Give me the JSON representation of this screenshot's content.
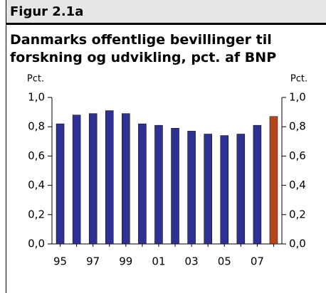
{
  "chart_data": {
    "type": "bar",
    "header": "Figur 2.1a",
    "title": "Danmarks offentlige bevillinger til forskning og udvikling, pct. af BNP",
    "ylabel": "Pct.",
    "y2label": "Pct.",
    "categories": [
      "95",
      null,
      "97",
      null,
      "99",
      null,
      "01",
      null,
      "03",
      null,
      "05",
      null,
      "07",
      null
    ],
    "values": [
      0.82,
      0.88,
      0.89,
      0.91,
      0.89,
      0.82,
      0.81,
      0.79,
      0.77,
      0.75,
      0.74,
      0.75,
      0.81,
      0.87
    ],
    "colors": [
      "#2e3192",
      "#2e3192",
      "#2e3192",
      "#2e3192",
      "#2e3192",
      "#2e3192",
      "#2e3192",
      "#2e3192",
      "#2e3192",
      "#2e3192",
      "#2e3192",
      "#2e3192",
      "#2e3192",
      "#b5461b"
    ],
    "ylim": [
      0,
      1
    ],
    "yticks": [
      {
        "value": 0,
        "label": "0,0"
      },
      {
        "value": 0.2,
        "label": "0,2"
      },
      {
        "value": 0.4,
        "label": "0,4"
      },
      {
        "value": 0.6,
        "label": "0,6"
      },
      {
        "value": 0.8,
        "label": "0,8"
      },
      {
        "value": 1,
        "label": "1,0"
      }
    ],
    "y2lim": [
      0,
      1
    ],
    "y2ticks": [
      {
        "value": 0,
        "label": "0,0"
      },
      {
        "value": 0.2,
        "label": "0,2"
      },
      {
        "value": 0.4,
        "label": "0,4"
      },
      {
        "value": 0.6,
        "label": "0,6"
      },
      {
        "value": 0.8,
        "label": "0,8"
      },
      {
        "value": 1,
        "label": "1,0"
      }
    ]
  }
}
